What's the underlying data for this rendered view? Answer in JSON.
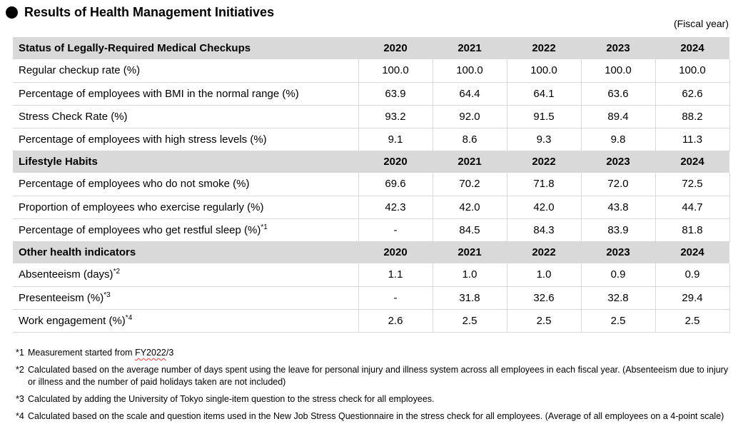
{
  "page": {
    "title": "Results of Health Management Initiatives",
    "fiscal_year_label": "(Fiscal year)"
  },
  "colors": {
    "header_bg": "#d9d9d9",
    "border": "#d9d9d9",
    "text": "#000000",
    "spellcheck_underline": "#ff3b30"
  },
  "table": {
    "year_columns": [
      "2020",
      "2021",
      "2022",
      "2023",
      "2024"
    ],
    "sections": [
      {
        "title": "Status of Legally-Required Medical Checkups",
        "rows": [
          {
            "label": "Regular checkup rate (%)",
            "values": [
              "100.0",
              "100.0",
              "100.0",
              "100.0",
              "100.0"
            ]
          },
          {
            "label": "Percentage of employees with BMI in the normal range (%)",
            "values": [
              "63.9",
              "64.4",
              "64.1",
              "63.6",
              "62.6"
            ]
          },
          {
            "label": "Stress Check Rate (%)",
            "values": [
              "93.2",
              "92.0",
              "91.5",
              "89.4",
              "88.2"
            ]
          },
          {
            "label": "Percentage of employees with high stress levels (%)",
            "values": [
              "9.1",
              "8.6",
              "9.3",
              "9.8",
              "11.3"
            ]
          }
        ]
      },
      {
        "title": "Lifestyle Habits",
        "rows": [
          {
            "label": "Percentage of employees who do not smoke (%)",
            "values": [
              "69.6",
              "70.2",
              "71.8",
              "72.0",
              "72.5"
            ]
          },
          {
            "label": "Proportion of employees who exercise regularly (%)",
            "values": [
              "42.3",
              "42.0",
              "42.0",
              "43.8",
              "44.7"
            ]
          },
          {
            "label": "Percentage of employees who get restful sleep (%)",
            "sup": "*1",
            "values": [
              "-",
              "84.5",
              "84.3",
              "83.9",
              "81.8"
            ]
          }
        ]
      },
      {
        "title": "Other health indicators",
        "rows": [
          {
            "label": "Absenteeism (days)",
            "sup": "*2",
            "values": [
              "1.1",
              "1.0",
              "1.0",
              "0.9",
              "0.9"
            ]
          },
          {
            "label": "Presenteeism (%)",
            "sup": "*3",
            "values": [
              "-",
              "31.8",
              "32.6",
              "32.8",
              "29.4"
            ]
          },
          {
            "label": "Work engagement (%)",
            "sup": "*4",
            "values": [
              "2.6",
              "2.5",
              "2.5",
              "2.5",
              "2.5"
            ]
          }
        ]
      }
    ]
  },
  "footnotes": [
    {
      "marker": "*1",
      "text_before": "Measurement started from ",
      "spellcheck_text": "FY2022",
      "text_after": "/3"
    },
    {
      "marker": "*2",
      "text": "Calculated based on the average number of days spent using the leave for personal injury and illness system across all employees in each fiscal year. (Absenteeism due to injury or illness and the number of paid holidays taken are not included)"
    },
    {
      "marker": "*3",
      "text": "Calculated by adding the University of Tokyo single-item question to the stress check for all employees."
    },
    {
      "marker": "*4",
      "text": "Calculated based on the scale and question items used in the New Job Stress Questionnaire in the stress check for all employees. (Average of all employees on a 4-point scale)"
    }
  ]
}
